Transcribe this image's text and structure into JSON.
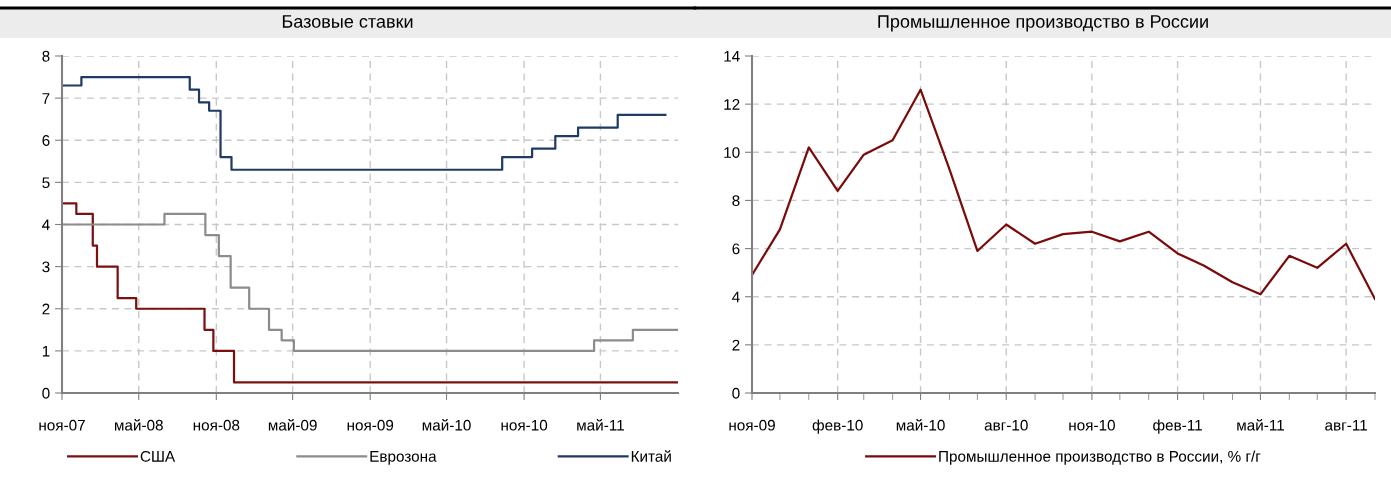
{
  "chart_data": [
    {
      "type": "step",
      "title": "Базовые ставки",
      "xlim": [
        "2007-11-01",
        "2011-11-01"
      ],
      "xticks": [
        {
          "value": "2007-11-01",
          "label": "ноя-07"
        },
        {
          "value": "2008-05-01",
          "label": "май-08"
        },
        {
          "value": "2008-11-01",
          "label": "ноя-08"
        },
        {
          "value": "2009-05-01",
          "label": "май-09"
        },
        {
          "value": "2009-11-01",
          "label": "ноя-09"
        },
        {
          "value": "2010-05-01",
          "label": "май-10"
        },
        {
          "value": "2010-11-01",
          "label": "ноя-10"
        },
        {
          "value": "2011-05-01",
          "label": "май-11"
        }
      ],
      "ylim": [
        0,
        8
      ],
      "yticks": [
        0,
        1,
        2,
        3,
        4,
        5,
        6,
        7,
        8
      ],
      "grid": true,
      "legend": "bottom",
      "series": [
        {
          "name": "США",
          "color": "#7b1010",
          "x": [
            "2007-11-01",
            "2007-12-05",
            "2008-01-13",
            "2008-01-23",
            "2008-03-12",
            "2008-04-25",
            "2008-10-04",
            "2008-10-25",
            "2008-12-13",
            "2011-11-01"
          ],
          "values": [
            4.5,
            4.25,
            3.5,
            3.0,
            2.25,
            2.0,
            1.5,
            1.0,
            0.25,
            0.25
          ]
        },
        {
          "name": "Еврозона",
          "color": "#8c8c8c",
          "x": [
            "2007-11-01",
            "2008-07-01",
            "2008-10-06",
            "2008-11-07",
            "2008-12-05",
            "2009-01-18",
            "2009-03-06",
            "2009-04-05",
            "2009-05-04",
            "2011-04-16",
            "2011-07-17",
            "2011-11-01"
          ],
          "values": [
            4.0,
            4.25,
            3.75,
            3.25,
            2.5,
            2.0,
            1.5,
            1.25,
            1.0,
            1.25,
            1.5,
            1.5
          ]
        },
        {
          "name": "Китай",
          "color": "#1f3a64",
          "x": [
            "2007-11-01",
            "2007-12-17",
            "2008-08-30",
            "2008-09-21",
            "2008-10-15",
            "2008-11-11",
            "2008-12-07",
            "2010-09-10",
            "2010-11-20",
            "2011-01-14",
            "2011-03-09",
            "2011-06-11",
            "2011-10-02"
          ],
          "values": [
            7.3,
            7.5,
            7.2,
            6.9,
            6.7,
            5.6,
            5.3,
            5.6,
            5.8,
            6.1,
            6.3,
            6.6,
            6.6
          ]
        }
      ]
    },
    {
      "type": "line",
      "title": "Промышленное производство в России",
      "xlim": [
        "2009-11-01",
        "2011-09-01"
      ],
      "xticks": [
        {
          "value": "2009-11-01",
          "label": "ноя-09"
        },
        {
          "value": "2009-12-01",
          "label": null
        },
        {
          "value": "2010-01-01",
          "label": null
        },
        {
          "value": "2010-02-01",
          "label": "фев-10"
        },
        {
          "value": "2010-03-01",
          "label": null
        },
        {
          "value": "2010-04-01",
          "label": null
        },
        {
          "value": "2010-05-01",
          "label": "май-10"
        },
        {
          "value": "2010-06-01",
          "label": null
        },
        {
          "value": "2010-07-01",
          "label": null
        },
        {
          "value": "2010-08-01",
          "label": "авг-10"
        },
        {
          "value": "2010-09-01",
          "label": null
        },
        {
          "value": "2010-10-01",
          "label": null
        },
        {
          "value": "2010-11-01",
          "label": "ноя-10"
        },
        {
          "value": "2010-12-01",
          "label": null
        },
        {
          "value": "2011-01-01",
          "label": null
        },
        {
          "value": "2011-02-01",
          "label": "фев-11"
        },
        {
          "value": "2011-03-01",
          "label": null
        },
        {
          "value": "2011-04-01",
          "label": null
        },
        {
          "value": "2011-05-01",
          "label": "май-11"
        },
        {
          "value": "2011-06-01",
          "label": null
        },
        {
          "value": "2011-07-01",
          "label": null
        },
        {
          "value": "2011-08-01",
          "label": "авг-11"
        },
        {
          "value": "2011-09-01",
          "label": null
        }
      ],
      "ylim": [
        0,
        14
      ],
      "yticks": [
        0,
        2,
        4,
        6,
        8,
        10,
        12,
        14
      ],
      "grid": true,
      "legend": "bottom",
      "x": [
        "2009-11-01",
        "2009-12-01",
        "2010-01-01",
        "2010-02-01",
        "2010-03-01",
        "2010-04-01",
        "2010-05-01",
        "2010-06-01",
        "2010-07-01",
        "2010-08-01",
        "2010-09-01",
        "2010-10-01",
        "2010-11-01",
        "2010-12-01",
        "2011-01-01",
        "2011-02-01",
        "2011-03-01",
        "2011-04-01",
        "2011-05-01",
        "2011-06-01",
        "2011-07-01",
        "2011-08-01",
        "2011-09-01"
      ],
      "series": [
        {
          "name": "Промышленное производство в России, % г/г",
          "color": "#7b0a0a",
          "values": [
            4.9,
            6.8,
            10.2,
            8.4,
            9.9,
            10.5,
            12.6,
            9.3,
            5.9,
            7.0,
            6.2,
            6.6,
            6.7,
            6.3,
            6.7,
            5.8,
            5.3,
            4.6,
            4.1,
            5.7,
            5.2,
            6.2,
            3.9
          ]
        }
      ]
    }
  ]
}
